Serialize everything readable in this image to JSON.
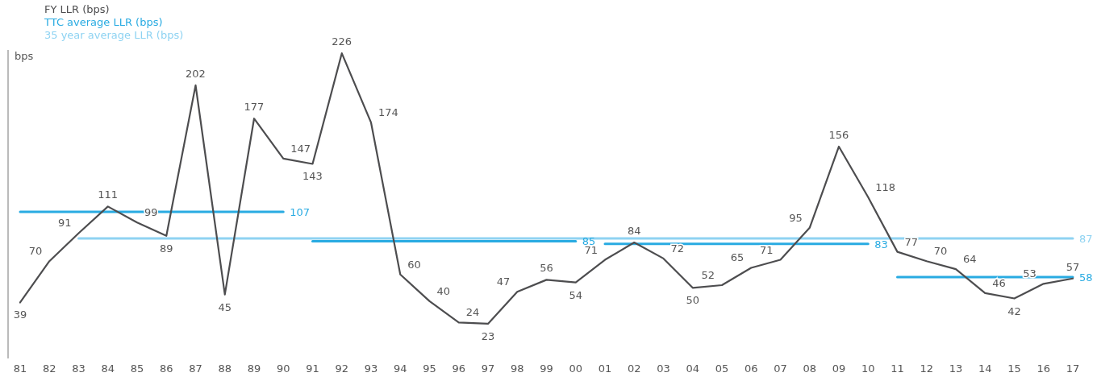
{
  "chart_data": {
    "type": "line",
    "ylabel": "bps",
    "legend": "top left",
    "data_labels": true,
    "categories": [
      "81",
      "82",
      "83",
      "84",
      "85",
      "86",
      "87",
      "88",
      "89",
      "90",
      "91",
      "92",
      "93",
      "94",
      "95",
      "96",
      "97",
      "98",
      "99",
      "00",
      "01",
      "02",
      "03",
      "04",
      "05",
      "06",
      "07",
      "08",
      "09",
      "10",
      "11",
      "12",
      "13",
      "14",
      "15",
      "16",
      "17"
    ],
    "series": [
      {
        "name": "FY LLR (bps)",
        "color": "#4d4d4f",
        "values": [
          39,
          70,
          91,
          111,
          99,
          89,
          202,
          45,
          177,
          147,
          143,
          226,
          174,
          60,
          40,
          24,
          23,
          47,
          56,
          54,
          71,
          84,
          72,
          50,
          52,
          65,
          71,
          95,
          156,
          118,
          77,
          70,
          64,
          46,
          42,
          53,
          57
        ]
      },
      {
        "name": "TTC average LLR (bps)",
        "color": "#29abe2",
        "x": [
          "81",
          "90"
        ],
        "values": [
          107,
          107
        ],
        "value_labels": [
          null,
          "107"
        ]
      },
      {
        "name": "35 year average LLR (bps)",
        "color": "#8fd3f2",
        "x": [
          "83",
          "17"
        ],
        "values": [
          87,
          87
        ],
        "value_labels": [
          null,
          "87"
        ]
      },
      {
        "color": "#29abe2",
        "x": [
          "91",
          "00"
        ],
        "values": [
          85,
          85
        ],
        "value_labels": [
          null,
          "85"
        ]
      },
      {
        "color": "#29abe2",
        "x": [
          "01",
          "10"
        ],
        "values": [
          83,
          83
        ],
        "value_labels": [
          null,
          "83"
        ]
      },
      {
        "color": "#29abe2",
        "x": [
          "11",
          "17"
        ],
        "values": [
          58,
          58
        ],
        "value_labels": [
          null,
          "58"
        ]
      }
    ]
  }
}
